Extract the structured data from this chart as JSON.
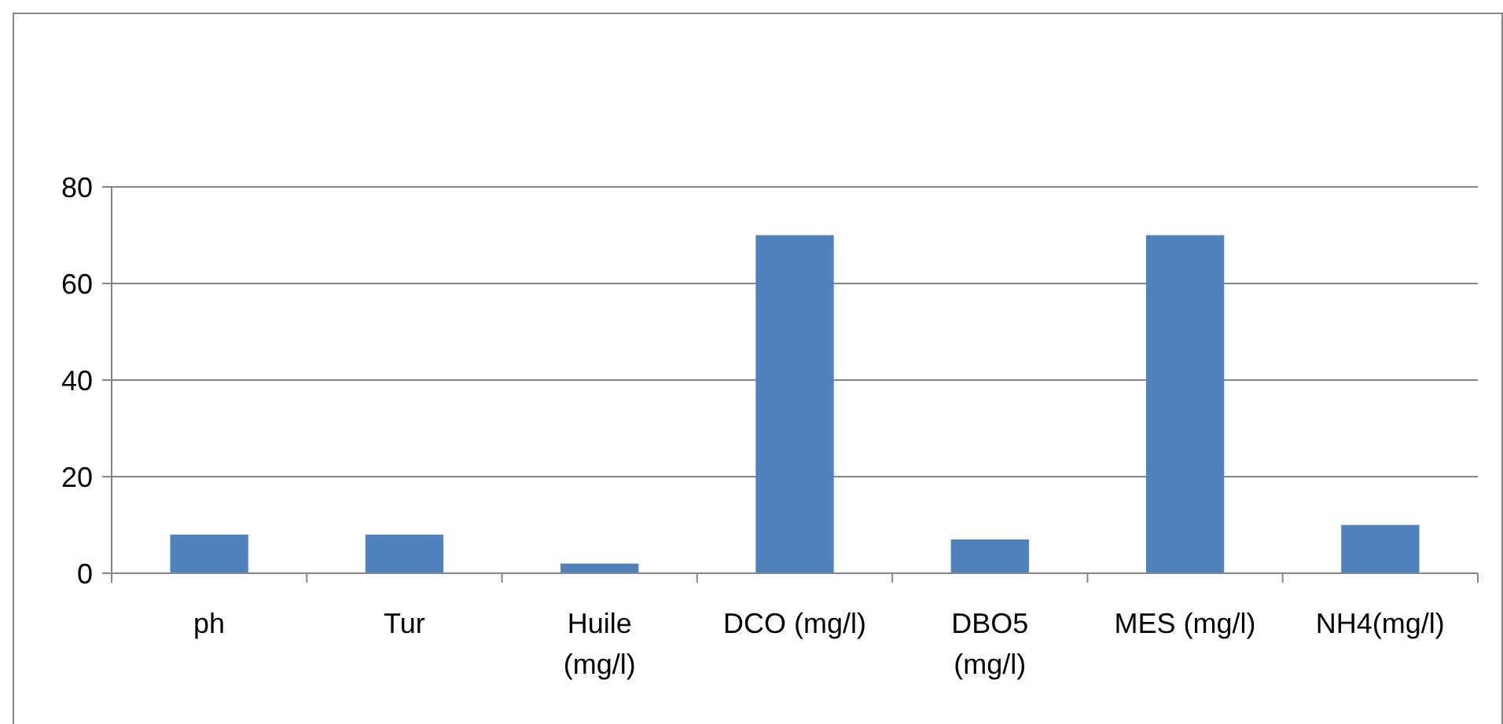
{
  "chart_data": {
    "type": "bar",
    "categories": [
      "ph",
      "Tur",
      "Huile (mg/l)",
      "DCO (mg/l)",
      "DBO5 (mg/l)",
      "MES (mg/l)",
      "NH4(mg/l)"
    ],
    "values": [
      8,
      8,
      2,
      70,
      7,
      70,
      10
    ],
    "color": "#4f81bd",
    "ylim": [
      0,
      80
    ],
    "yticks": [
      0,
      20,
      40,
      60,
      80
    ],
    "grid": "y"
  }
}
